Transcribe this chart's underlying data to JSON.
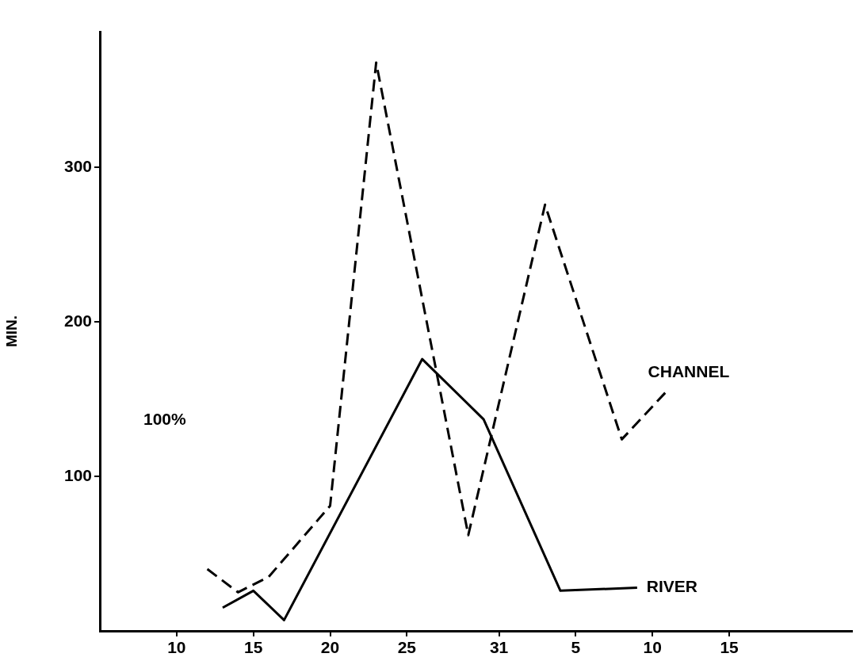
{
  "chart_data": {
    "type": "line",
    "ylabel": "MIN.",
    "annotations": [
      "100%"
    ],
    "xlim": [
      "--08-05",
      "--09-23"
    ],
    "xticks": [
      {
        "value": "--08-10",
        "label": "10"
      },
      {
        "value": "--08-15",
        "label": "15"
      },
      {
        "value": "--08-20",
        "label": "20"
      },
      {
        "value": "--08-25",
        "label": "25"
      },
      {
        "value": "--08-31",
        "label": "31"
      },
      {
        "value": "--09-05",
        "label": "5"
      },
      {
        "value": "--09-10",
        "label": "10"
      },
      {
        "value": "--09-15",
        "label": "15"
      }
    ],
    "ylim": [
      0,
      388
    ],
    "yticks": [
      100,
      200,
      300
    ],
    "grid": false,
    "legend": false,
    "marker": "none",
    "series": [
      {
        "name": "CHANNEL",
        "color": "#000000",
        "line_style": "dashed",
        "x": [
          "--08-12",
          "--08-14",
          "--08-16",
          "--08-20",
          "--08-23",
          "--08-29",
          "--09-03",
          "--09-08",
          "--09-11"
        ],
        "values": [
          40,
          25,
          35,
          81,
          368,
          62,
          276,
          124,
          156
        ]
      },
      {
        "name": "RIVER",
        "color": "#000000",
        "line_style": "solid",
        "x": [
          "--08-13",
          "--08-15",
          "--08-17",
          "--08-26",
          "--08-30",
          "--09-04",
          "--09-09"
        ],
        "values": [
          15,
          26,
          7,
          176,
          137,
          26,
          28
        ]
      }
    ]
  }
}
